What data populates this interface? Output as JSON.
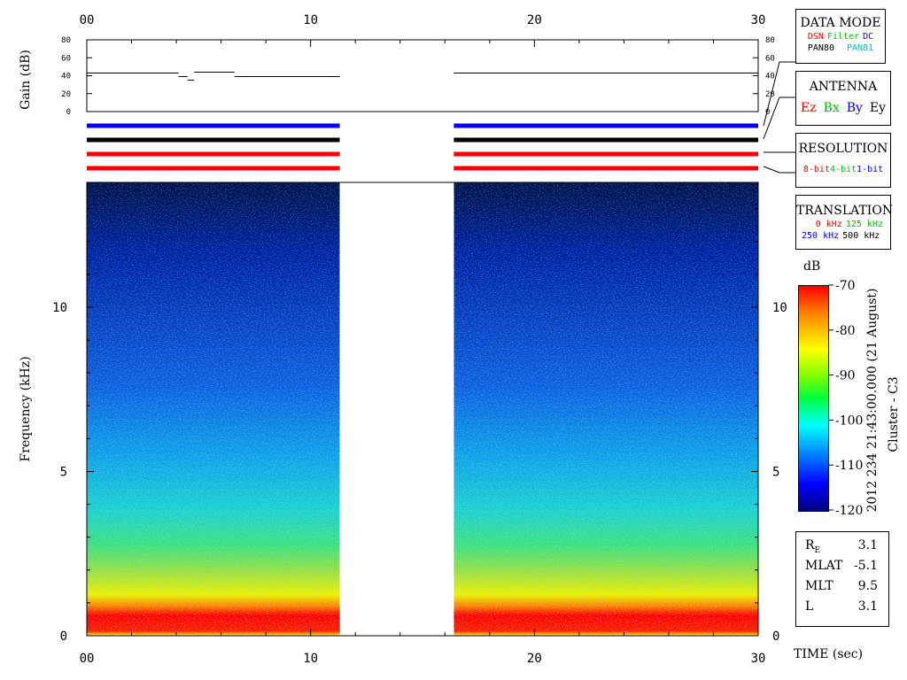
{
  "chart_data": {
    "type": "heatmap",
    "title": "2012 234 21:43:00.000 (21 August)",
    "spacecraft": "Cluster - C3",
    "xlabel": "TIME (sec)",
    "ylabel": "Frequency (kHz)",
    "gain_ylabel": "Gain (dB)",
    "xlim": [
      0,
      30
    ],
    "ylim_khz": [
      0,
      13.8
    ],
    "x_ticks": [
      "00",
      "10",
      "20",
      "30"
    ],
    "y_ticks": [
      "0",
      "5",
      "10"
    ],
    "gain_ticks": [
      "0",
      "20",
      "40",
      "60",
      "80"
    ],
    "gain_ylim": [
      0,
      80
    ],
    "data_gap_sec": [
      11.3,
      16.4
    ],
    "gain_series": [
      {
        "x": [
          0,
          4.1
        ],
        "y": 43
      },
      {
        "x": [
          4.1,
          4.5
        ],
        "y": 39
      },
      {
        "x": [
          4.5,
          4.8
        ],
        "y": 35
      },
      {
        "x": [
          4.8,
          6.6
        ],
        "y": 44
      },
      {
        "x": [
          6.6,
          11.3
        ],
        "y": 39
      },
      {
        "x": [
          16.4,
          30
        ],
        "y": 43
      }
    ],
    "colorbar": {
      "label": "dB",
      "ticks": [
        "-70",
        "-80",
        "-90",
        "-100",
        "-110",
        "-120"
      ],
      "range": [
        -120,
        -70
      ]
    },
    "status_lines": [
      {
        "color": "#0000ff"
      },
      {
        "color": "#000000"
      },
      {
        "color": "#ff0000"
      },
      {
        "color": "#ff0000"
      }
    ]
  },
  "panels": {
    "data_mode": {
      "title": "DATA MODE",
      "row1": [
        {
          "text": "DSN",
          "color": "#ff0000"
        },
        {
          "text": "Filter",
          "color": "#00c000"
        },
        {
          "text": "DC",
          "color": "#0000ff"
        }
      ],
      "row2": [
        {
          "text": "PAN80",
          "color": "#000000"
        },
        {
          "text": "PAN81",
          "color": "#00c0c0"
        }
      ]
    },
    "antenna": {
      "title": "ANTENNA",
      "items": [
        {
          "text": "Ez",
          "color": "#ff0000"
        },
        {
          "text": "Bx",
          "color": "#00c000"
        },
        {
          "text": "By",
          "color": "#0000ff"
        },
        {
          "text": "Ey",
          "color": "#000000"
        }
      ]
    },
    "resolution": {
      "title": "RESOLUTION",
      "items": [
        {
          "text": "8-bit",
          "color": "#ff0000"
        },
        {
          "text": "4-bit",
          "color": "#00c000"
        },
        {
          "text": "1-bit",
          "color": "#0000ff"
        }
      ]
    },
    "translation": {
      "title": "TRANSLATION",
      "row1": [
        {
          "text": "0 kHz",
          "color": "#ff0000"
        },
        {
          "text": "125 kHz",
          "color": "#00c000"
        }
      ],
      "row2": [
        {
          "text": "250 kHz",
          "color": "#0000ff"
        },
        {
          "text": "500 kHz",
          "color": "#000000"
        }
      ]
    },
    "orbit": [
      {
        "label": "R",
        "sub": "E",
        "value": "3.1"
      },
      {
        "label": "MLAT",
        "sub": "",
        "value": "-5.1"
      },
      {
        "label": "MLT",
        "sub": "",
        "value": "9.5"
      },
      {
        "label": "L",
        "sub": "",
        "value": "3.1"
      }
    ]
  }
}
